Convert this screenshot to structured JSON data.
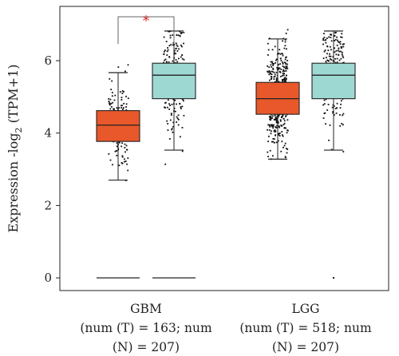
{
  "chart_data": {
    "type": "box",
    "ylabel": "Expression -log",
    "ylabel_sub": "2",
    "ylabel_tail": " (TPM+1)",
    "ylim": [
      -0.35,
      7.5
    ],
    "yticks": [
      "0",
      "2",
      "4",
      "6"
    ],
    "categories": [
      {
        "name": "GBM",
        "label_lines": [
          "GBM",
          "(num (T) = 163; num",
          "(N) = 207)"
        ]
      },
      {
        "name": "LGG",
        "label_lines": [
          "LGG",
          "(num (T) = 518; num",
          "(N) = 207)"
        ]
      }
    ],
    "colors": {
      "tumor": "#E8582B",
      "normal": "#9ED8D3",
      "sig": "#E0312F",
      "point": "#111111"
    },
    "boxes": [
      {
        "category": "GBM",
        "group": "T",
        "n": 163,
        "whisker_low": 2.7,
        "q1": 3.77,
        "median": 4.22,
        "q3": 4.62,
        "whisker_high": 5.67,
        "min": 2.4,
        "max": 6.2,
        "zeros": 0
      },
      {
        "category": "GBM",
        "group": "N",
        "n": 207,
        "whisker_low": 3.53,
        "q1": 4.95,
        "median": 5.6,
        "q3": 5.93,
        "whisker_high": 6.82,
        "min": 2.5,
        "max": 6.82,
        "zeros": 0
      },
      {
        "category": "LGG",
        "group": "T",
        "n": 518,
        "whisker_low": 3.28,
        "q1": 4.52,
        "median": 4.95,
        "q3": 5.4,
        "whisker_high": 6.6,
        "min": 3.28,
        "max": 7.0,
        "zeros": 0
      },
      {
        "category": "LGG",
        "group": "N",
        "n": 207,
        "whisker_low": 3.53,
        "q1": 4.95,
        "median": 5.6,
        "q3": 5.93,
        "whisker_high": 6.82,
        "min": 2.5,
        "max": 6.82,
        "zeros": 1
      }
    ],
    "zero_lines": [
      {
        "category": "GBM",
        "group": "T"
      },
      {
        "category": "GBM",
        "group": "N"
      }
    ],
    "significance": [
      {
        "category": "GBM",
        "label": "*"
      }
    ],
    "grid": false,
    "legend": "none"
  }
}
